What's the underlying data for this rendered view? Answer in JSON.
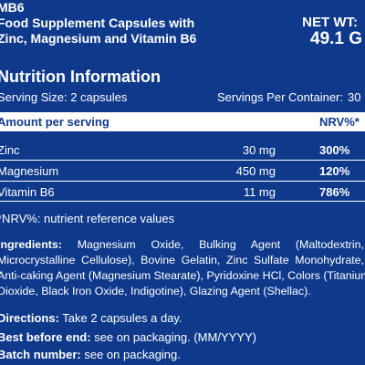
{
  "product": {
    "name": "MB6",
    "description_line1": "Food Supplement Capsules with",
    "description_line2": "Zinc, Magnesium and Vitamin B6",
    "net_weight_label": "NET WT:",
    "net_weight_value": "49.1 G"
  },
  "nutrition": {
    "title": "Nutrition Information",
    "serving_size": "Serving Size: 2 capsules",
    "servings_per_container_label": "Servings Per Container:",
    "servings_per_container_value": "30",
    "header_amount": "Amount per serving",
    "header_nrv": "NRV%*",
    "rows": [
      {
        "name": "Zinc",
        "amount": "30 mg",
        "nrv": "300%"
      },
      {
        "name": "Magnesium",
        "amount": "450 mg",
        "nrv": "120%"
      },
      {
        "name": "Vitamin B6",
        "amount": "11 mg",
        "nrv": "786%"
      }
    ],
    "note": "*NRV%: nutrient reference values"
  },
  "ingredients": {
    "label": "Ingredients:",
    "line1": "Magnesium Oxide, Bulking Agent (Maltodextrin,",
    "line2": "Microcrystalline Cellulose), Bovine Gelatin, Zinc Sulfate Monohydrate,",
    "line3": "Anti-caking Agent (Magnesium Stearate), Pyridoxine HCl, Colors (Titanium",
    "line4": "Dioxide, Black Iron Oxide, Indigotine), Glazing Agent (Shellac)."
  },
  "directions": {
    "label": "Directions:",
    "text": "Take 2 capsules a day."
  },
  "best_before": {
    "label": "Best before end:",
    "text": "see on packaging. (MM/YYYY)"
  },
  "batch": {
    "label": "Batch number:",
    "text": "see on packaging."
  }
}
